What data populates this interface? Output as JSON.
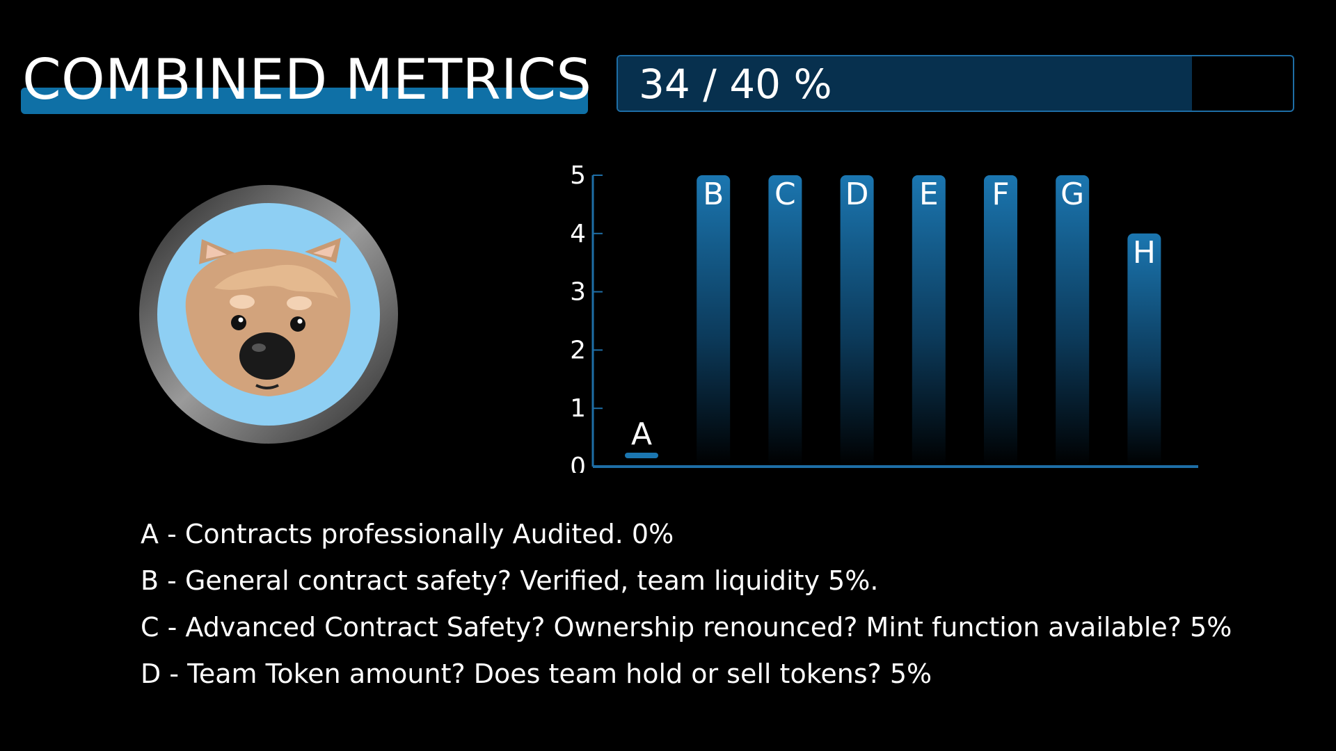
{
  "header": {
    "title": "COMBINED METRICS",
    "score_text": "34 / 40 %",
    "score_value": 34,
    "score_max": 40
  },
  "avatar": {
    "icon": "wombat-face-icon"
  },
  "colors": {
    "accent": "#0f70a6",
    "bar_top": "#1b76b0",
    "axis": "#1e6ea6",
    "progress_fill": "#07304e",
    "avatar_bg": "#8ecff3"
  },
  "chart_data": {
    "type": "bar",
    "categories": [
      "A",
      "B",
      "C",
      "D",
      "E",
      "F",
      "G",
      "H"
    ],
    "values": [
      0,
      5,
      5,
      5,
      5,
      5,
      5,
      4
    ],
    "ylim": [
      0,
      5
    ],
    "yticks": [
      "0",
      "1",
      "2",
      "3",
      "4",
      "5"
    ],
    "grid": false,
    "legend": "none"
  },
  "legend": [
    "A - Contracts professionally Audited. 0%",
    "B - General contract safety? Verified, team liquidity 5%.",
    "C - Advanced Contract Safety? Ownership renounced? Mint function available? 5%",
    "D - Team Token amount? Does team hold or sell tokens? 5%"
  ]
}
